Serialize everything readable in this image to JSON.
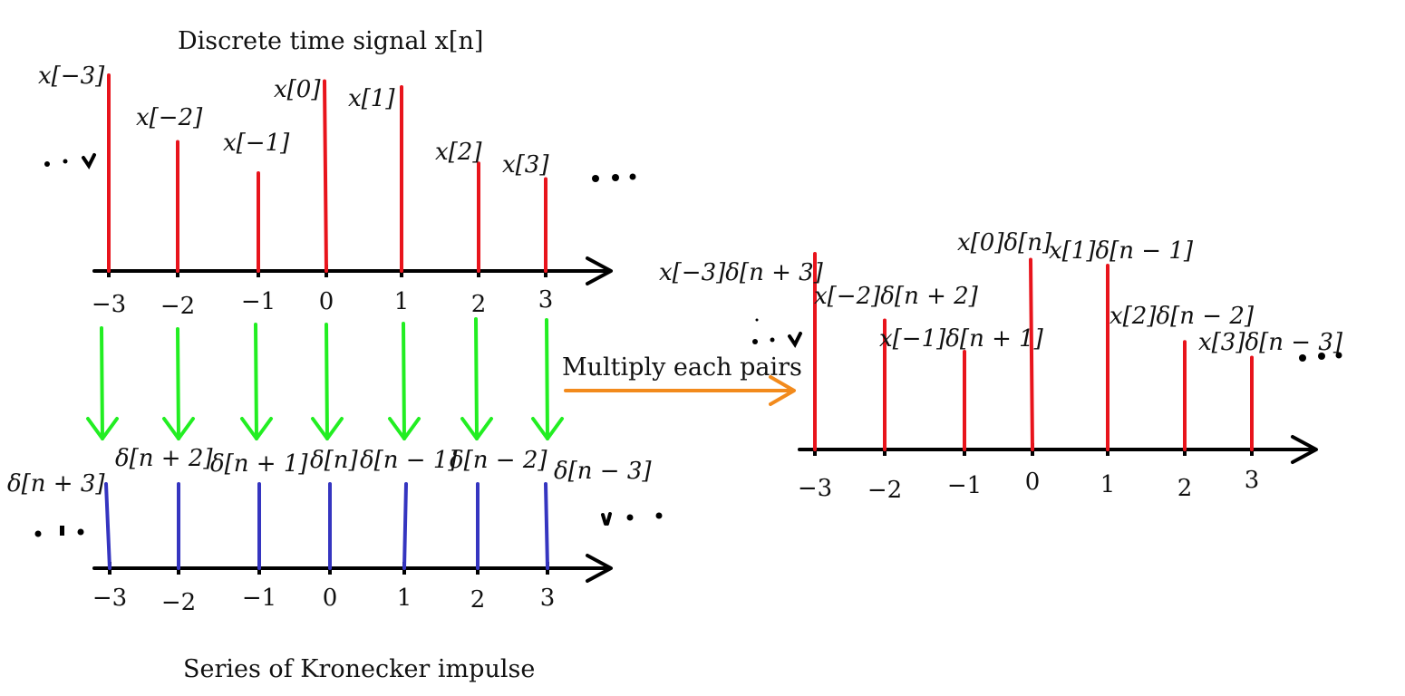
{
  "top_title": "Discrete time signal x[n]",
  "bottom_title": "Series of Kronecker impulse",
  "operation_label": "Multiply each pairs",
  "indices": [
    "−3",
    "−2",
    "−1",
    "0",
    "1",
    "2",
    "3"
  ],
  "signal": {
    "labels": [
      "x[−3]",
      "x[−2]",
      "x[−1]",
      "x[0]",
      "x[1]",
      "x[2]",
      "x[3]"
    ],
    "relative_heights": [
      1.0,
      0.66,
      0.5,
      0.97,
      0.94,
      0.55,
      0.47
    ]
  },
  "impulses": {
    "labels": [
      "δ[n + 3]",
      "δ[n + 2]",
      "δ[n + 1]",
      "δ[n]",
      "δ[n − 1]",
      "δ[n − 2]",
      "δ[n − 3]"
    ],
    "relative_heights": [
      1,
      1,
      1,
      1,
      1,
      1,
      1
    ]
  },
  "product": {
    "labels": [
      "x[−3]δ[n + 3]",
      "x[−2]δ[n + 2]",
      "x[−1]δ[n + 1]",
      "x[0]δ[n]",
      "x[1]δ[n − 1]",
      "x[2]δ[n − 2]",
      "x[3]δ[n − 3]"
    ],
    "relative_heights": [
      1.0,
      0.66,
      0.5,
      0.97,
      0.94,
      0.55,
      0.47
    ]
  },
  "colors": {
    "signal": "#e8141c",
    "impulse": "#3535c0",
    "down_arrow": "#22ee22",
    "multiply_arrow": "#f28a1c",
    "axis": "#000000"
  }
}
